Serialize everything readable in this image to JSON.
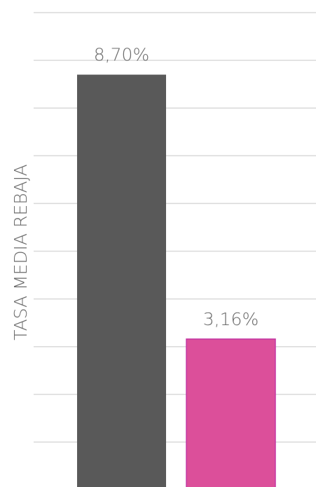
{
  "chart_data": {
    "type": "bar",
    "ylabel": "TASA MEDIA REBAJA",
    "categories": [
      null,
      null
    ],
    "values": [
      8.7,
      3.16
    ],
    "value_labels": [
      "8,70%",
      "3,16%"
    ],
    "colors": [
      "#595959",
      "#dc4f9a"
    ],
    "ylim": [
      0,
      10
    ],
    "yticks": [
      0,
      1,
      2,
      3,
      4,
      5,
      6,
      7,
      8,
      9,
      10
    ],
    "grid": true
  }
}
